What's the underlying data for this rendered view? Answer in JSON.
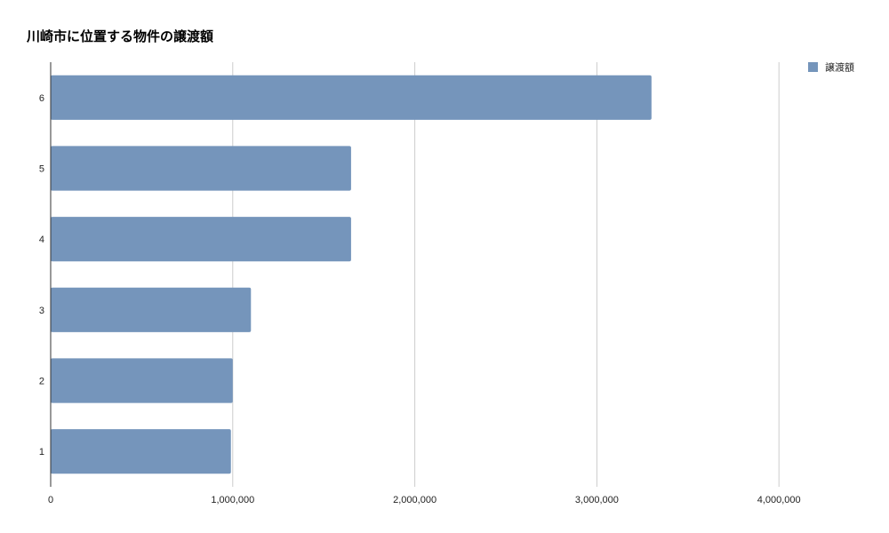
{
  "chart_data": {
    "type": "bar",
    "orientation": "horizontal",
    "title": "川崎市に位置する物件の譲渡額",
    "xlabel": "",
    "ylabel": "",
    "categories": [
      "1",
      "2",
      "3",
      "4",
      "5",
      "6"
    ],
    "series": [
      {
        "name": "譲渡額",
        "color": "#7595bb",
        "values": [
          990000,
          1000000,
          1100000,
          1650000,
          1650000,
          3300000
        ]
      }
    ],
    "xlim": [
      0,
      4500000
    ],
    "x_ticks": [
      0,
      1000000,
      2000000,
      3000000,
      4000000
    ],
    "x_tick_labels": [
      "0",
      "1,000,000",
      "2,000,000",
      "3,000,000",
      "4,000,000"
    ],
    "grid": true,
    "legend_position": "top-right"
  }
}
